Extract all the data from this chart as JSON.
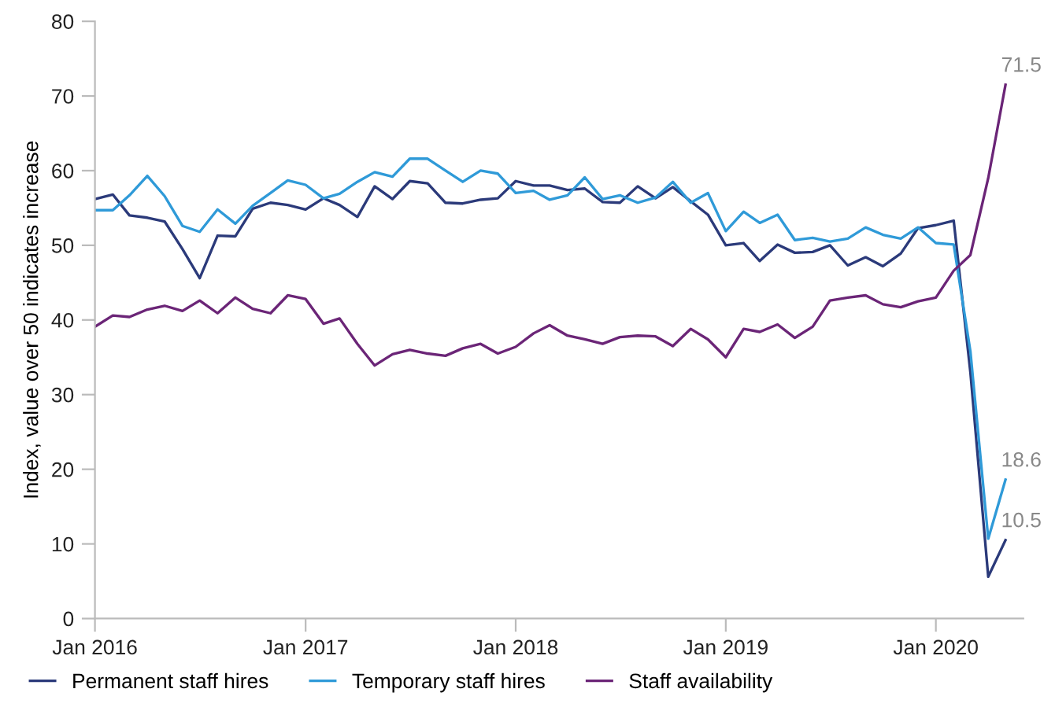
{
  "chart_data": {
    "type": "line",
    "ylabel": "Index, value over 50 indicates increase",
    "x": [
      "2016-01",
      "2016-02",
      "2016-03",
      "2016-04",
      "2016-05",
      "2016-06",
      "2016-07",
      "2016-08",
      "2016-09",
      "2016-10",
      "2016-11",
      "2016-12",
      "2017-01",
      "2017-02",
      "2017-03",
      "2017-04",
      "2017-05",
      "2017-06",
      "2017-07",
      "2017-08",
      "2017-09",
      "2017-10",
      "2017-11",
      "2017-12",
      "2018-01",
      "2018-02",
      "2018-03",
      "2018-04",
      "2018-05",
      "2018-06",
      "2018-07",
      "2018-08",
      "2018-09",
      "2018-10",
      "2018-11",
      "2018-12",
      "2019-01",
      "2019-02",
      "2019-03",
      "2019-04",
      "2019-05",
      "2019-06",
      "2019-07",
      "2019-08",
      "2019-09",
      "2019-10",
      "2019-11",
      "2019-12",
      "2020-01",
      "2020-02",
      "2020-03",
      "2020-04",
      "2020-05"
    ],
    "series": [
      {
        "name": "Permanent staff hires",
        "color": "#2b3a7a",
        "values": [
          56.2,
          56.8,
          54.0,
          53.7,
          53.2,
          49.5,
          45.6,
          51.3,
          51.2,
          54.9,
          55.7,
          55.4,
          54.8,
          56.3,
          55.4,
          53.8,
          57.9,
          56.2,
          58.6,
          58.3,
          55.7,
          55.6,
          56.1,
          56.3,
          58.6,
          58.0,
          58.0,
          57.4,
          57.6,
          55.8,
          55.7,
          57.9,
          56.3,
          57.8,
          55.9,
          54.1,
          50.0,
          50.3,
          47.9,
          50.1,
          49.0,
          49.1,
          50.0,
          47.3,
          48.4,
          47.2,
          48.9,
          52.3,
          52.7,
          53.3,
          33.0,
          5.6,
          10.5
        ],
        "value_labels": [
          null,
          null,
          null,
          null,
          null,
          null,
          null,
          null,
          null,
          null,
          null,
          null,
          null,
          null,
          null,
          null,
          null,
          null,
          null,
          null,
          null,
          null,
          null,
          null,
          null,
          null,
          null,
          null,
          null,
          null,
          null,
          null,
          null,
          null,
          null,
          null,
          null,
          null,
          null,
          null,
          null,
          null,
          null,
          null,
          null,
          null,
          null,
          null,
          null,
          null,
          null,
          null,
          "10.5"
        ]
      },
      {
        "name": "Temporary staff hires",
        "color": "#2f9ad8",
        "values": [
          54.7,
          54.7,
          56.7,
          59.3,
          56.6,
          52.6,
          51.8,
          54.8,
          52.9,
          55.3,
          57.0,
          58.7,
          58.1,
          56.3,
          56.9,
          58.5,
          59.8,
          59.2,
          61.6,
          61.6,
          60.0,
          58.5,
          60.0,
          59.6,
          57.0,
          57.3,
          56.1,
          56.7,
          59.1,
          56.2,
          56.7,
          55.7,
          56.4,
          58.5,
          55.7,
          57.0,
          51.9,
          54.5,
          53.0,
          54.1,
          50.7,
          51.0,
          50.5,
          50.9,
          52.4,
          51.4,
          50.9,
          52.4,
          50.3,
          50.1,
          35.8,
          10.7,
          18.6
        ],
        "value_labels": [
          null,
          null,
          null,
          null,
          null,
          null,
          null,
          null,
          null,
          null,
          null,
          null,
          null,
          null,
          null,
          null,
          null,
          null,
          null,
          null,
          null,
          null,
          null,
          null,
          null,
          null,
          null,
          null,
          null,
          null,
          null,
          null,
          null,
          null,
          null,
          null,
          null,
          null,
          null,
          null,
          null,
          null,
          null,
          null,
          null,
          null,
          null,
          null,
          null,
          null,
          null,
          null,
          "18.6"
        ]
      },
      {
        "name": "Staff availability",
        "color": "#6b2577",
        "values": [
          39.1,
          40.6,
          40.4,
          41.4,
          41.9,
          41.2,
          42.6,
          40.9,
          43.0,
          41.5,
          40.9,
          43.3,
          42.8,
          39.5,
          40.2,
          36.8,
          33.9,
          35.4,
          36.0,
          35.5,
          35.2,
          36.2,
          36.8,
          35.5,
          36.4,
          38.2,
          39.3,
          37.9,
          37.4,
          36.8,
          37.7,
          37.9,
          37.8,
          36.5,
          38.8,
          37.4,
          35.0,
          38.8,
          38.4,
          39.4,
          37.6,
          39.1,
          42.6,
          43.0,
          43.3,
          42.1,
          41.7,
          42.5,
          43.0,
          46.6,
          48.7,
          59.0,
          71.5
        ],
        "value_labels": [
          null,
          null,
          null,
          null,
          null,
          null,
          null,
          null,
          null,
          null,
          null,
          null,
          null,
          null,
          null,
          null,
          null,
          null,
          null,
          null,
          null,
          null,
          null,
          null,
          null,
          null,
          null,
          null,
          null,
          null,
          null,
          null,
          null,
          null,
          null,
          null,
          null,
          null,
          null,
          null,
          null,
          null,
          null,
          null,
          null,
          null,
          null,
          null,
          null,
          null,
          null,
          null,
          "71.5"
        ]
      }
    ],
    "xlim": [
      "2016-01",
      "2020-06"
    ],
    "xticks": [
      {
        "value": "2016-01",
        "label": "Jan 2016"
      },
      {
        "value": "2017-01",
        "label": "Jan 2017"
      },
      {
        "value": "2018-01",
        "label": "Jan 2018"
      },
      {
        "value": "2019-01",
        "label": "Jan 2019"
      },
      {
        "value": "2020-01",
        "label": "Jan 2020"
      }
    ],
    "ylim": [
      0,
      80
    ],
    "yticks": [
      0,
      10,
      20,
      30,
      40,
      50,
      60,
      70,
      80
    ],
    "grid": false,
    "legend": "bottom",
    "marker": "none",
    "line_style": "solid"
  }
}
